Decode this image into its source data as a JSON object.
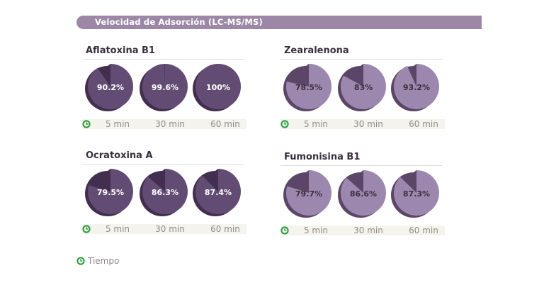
{
  "header": {
    "title": "Velocidad de Adsorción (LC-MS/MS)"
  },
  "colors": {
    "dark_fill": "#624c73",
    "dark_side": "#422f4f",
    "light_fill": "#9c88ae",
    "light_side": "#5b4668",
    "label_on_dark": "#ffffff",
    "label_on_light": "#3a2f3e",
    "clock": "#2e9a3e",
    "header_bar": "#9c88a6"
  },
  "time_labels": [
    "5 min",
    "30 min",
    "60 min"
  ],
  "legend": {
    "label": "Tiempo",
    "icon": "clock-icon"
  },
  "chart_data": [
    {
      "type": "pie",
      "title": "Aflatoxina B1",
      "categories": [
        "5 min",
        "30 min",
        "60 min"
      ],
      "values": [
        90.2,
        99.6,
        100
      ],
      "labels": [
        "90.2%",
        "99.6%",
        "100%"
      ],
      "style": "dark"
    },
    {
      "type": "pie",
      "title": "Zearalenona",
      "categories": [
        "5 min",
        "30 min",
        "60 min"
      ],
      "values": [
        78.5,
        83,
        93.2
      ],
      "labels": [
        "78.5%",
        "83%",
        "93.2%"
      ],
      "style": "light"
    },
    {
      "type": "pie",
      "title": "Ocratoxina A",
      "categories": [
        "5 min",
        "30 min",
        "60 min"
      ],
      "values": [
        79.5,
        86.3,
        87.4
      ],
      "labels": [
        "79.5%",
        "86.3%",
        "87.4%"
      ],
      "style": "dark"
    },
    {
      "type": "pie",
      "title": "Fumonisina B1",
      "categories": [
        "5 min",
        "30 min",
        "60 min"
      ],
      "values": [
        79.7,
        86.6,
        87.3
      ],
      "labels": [
        "79.7%",
        "86.6%",
        "87.3%"
      ],
      "style": "light"
    }
  ]
}
